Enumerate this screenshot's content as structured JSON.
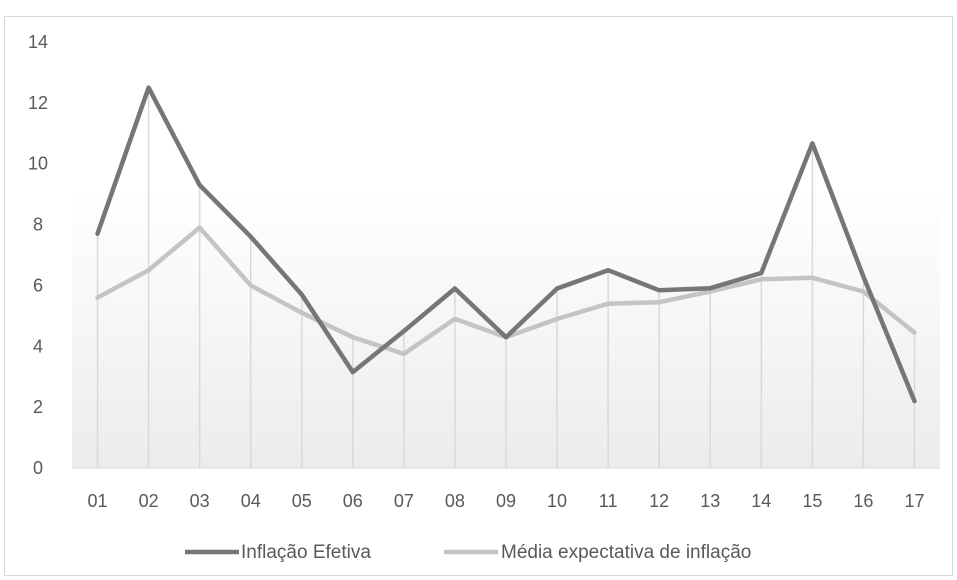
{
  "chart_data": {
    "type": "line",
    "title": "",
    "xlabel": "",
    "ylabel": "",
    "categories": [
      "01",
      "02",
      "03",
      "04",
      "05",
      "06",
      "07",
      "08",
      "09",
      "10",
      "11",
      "12",
      "13",
      "14",
      "15",
      "16",
      "17"
    ],
    "ylim": [
      0,
      14
    ],
    "yticks": [
      0,
      2,
      4,
      6,
      8,
      10,
      12,
      14
    ],
    "grid": false,
    "drop_lines": true,
    "legend_position": "bottom",
    "series": [
      {
        "name": "Inflação Efetiva",
        "color": "#767676",
        "values": [
          7.7,
          12.5,
          9.3,
          7.6,
          5.7,
          3.15,
          4.5,
          5.9,
          4.3,
          5.9,
          6.5,
          5.84,
          5.91,
          6.41,
          10.67,
          6.29,
          2.2
        ]
      },
      {
        "name": "Média expectativa de inflação",
        "color": "#c4c4c4",
        "values": [
          5.6,
          6.5,
          7.9,
          6.0,
          5.1,
          4.3,
          3.75,
          4.9,
          4.3,
          4.9,
          5.4,
          5.45,
          5.8,
          6.2,
          6.25,
          5.8,
          4.45
        ]
      }
    ]
  }
}
